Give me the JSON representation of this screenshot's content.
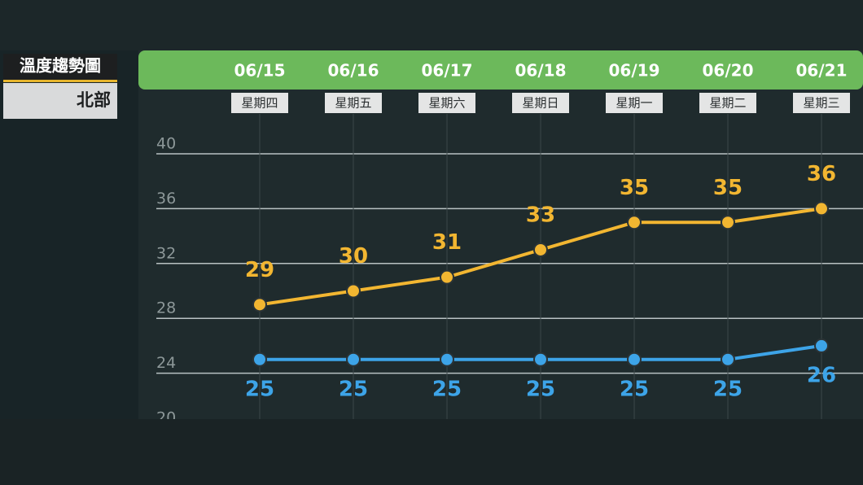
{
  "chart_data": {
    "type": "line",
    "title": "溫度趨勢圖",
    "subtitle": "北部",
    "categories": [
      "06/15",
      "06/16",
      "06/17",
      "06/18",
      "06/19",
      "06/20",
      "06/21"
    ],
    "weekdays": [
      "星期四",
      "星期五",
      "星期六",
      "星期日",
      "星期一",
      "星期二",
      "星期三"
    ],
    "series": [
      {
        "color": "#f2b631",
        "values": [
          29,
          30,
          31,
          33,
          35,
          35,
          36
        ]
      },
      {
        "color": "#3da4e8",
        "values": [
          25,
          25,
          25,
          25,
          25,
          25,
          26
        ]
      }
    ],
    "ylim": [
      20,
      40
    ],
    "yticks": [
      20,
      24,
      28,
      32,
      36,
      40
    ],
    "grid": true
  }
}
